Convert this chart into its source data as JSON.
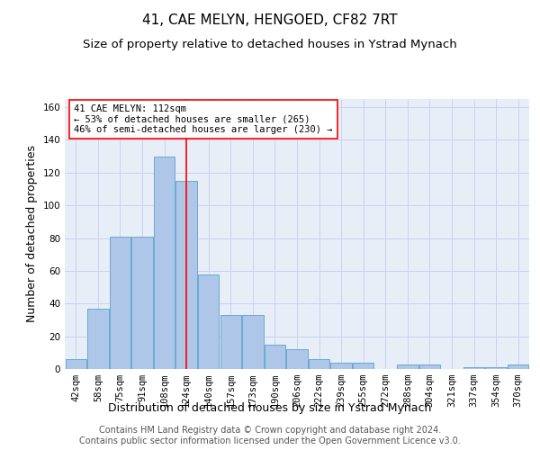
{
  "title": "41, CAE MELYN, HENGOED, CF82 7RT",
  "subtitle": "Size of property relative to detached houses in Ystrad Mynach",
  "xlabel": "Distribution of detached houses by size in Ystrad Mynach",
  "ylabel": "Number of detached properties",
  "categories": [
    "42sqm",
    "58sqm",
    "75sqm",
    "91sqm",
    "108sqm",
    "124sqm",
    "140sqm",
    "157sqm",
    "173sqm",
    "190sqm",
    "206sqm",
    "222sqm",
    "239sqm",
    "255sqm",
    "272sqm",
    "288sqm",
    "304sqm",
    "321sqm",
    "337sqm",
    "354sqm",
    "370sqm"
  ],
  "values": [
    6,
    37,
    81,
    81,
    130,
    115,
    58,
    33,
    33,
    15,
    12,
    6,
    4,
    4,
    0,
    3,
    3,
    0,
    1,
    1,
    3
  ],
  "bar_color": "#aec6e8",
  "bar_edge_color": "#6aaad4",
  "grid_color": "#c8d4ee",
  "background_color": "#e8eef8",
  "vline_color": "red",
  "vline_x_index": 4.975,
  "annotation_text": "41 CAE MELYN: 112sqm\n← 53% of detached houses are smaller (265)\n46% of semi-detached houses are larger (230) →",
  "annotation_box_color": "white",
  "annotation_box_edge_color": "red",
  "ylim": [
    0,
    165
  ],
  "yticks": [
    0,
    20,
    40,
    60,
    80,
    100,
    120,
    140,
    160
  ],
  "footer": "Contains HM Land Registry data © Crown copyright and database right 2024.\nContains public sector information licensed under the Open Government Licence v3.0.",
  "title_fontsize": 11,
  "subtitle_fontsize": 9.5,
  "xlabel_fontsize": 9,
  "ylabel_fontsize": 9,
  "tick_fontsize": 7.5,
  "annotation_fontsize": 7.5,
  "footer_fontsize": 7
}
